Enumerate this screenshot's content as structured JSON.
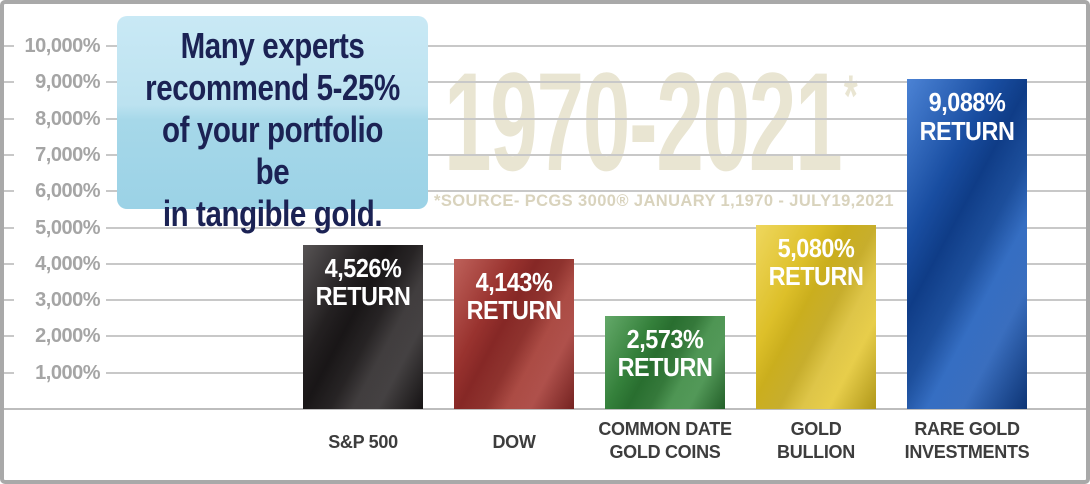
{
  "callout": {
    "text": "Many experts\nrecommend 5-25%\nof your portfolio be\nin tangible gold.",
    "bg_top": "#c9e9f5",
    "bg_bottom": "#9bd2e6",
    "text_color": "#1b2254"
  },
  "watermark": {
    "years": "1970-2021",
    "asterisk": "*",
    "source": "*SOURCE- PCGS 3000® JANUARY 1,1970 - JULY19,2021",
    "years_color": "#e9e5d2",
    "source_color": "#d9d3bd"
  },
  "colors": {
    "gridline": "#c8c8c8",
    "baseline": "#bdbdbd",
    "y_label": "#a5a5a5",
    "x_label": "#3d3d3d",
    "bar_text": "#ffffff",
    "frame_border": "#a9a9a9",
    "background": "#ffffff"
  },
  "chart_data": {
    "type": "bar",
    "title": "1970-2021*",
    "subtitle": "*SOURCE- PCGS 3000® JANUARY 1,1970 - JULY19,2021",
    "categories": [
      "S&P 500",
      "DOW",
      "COMMON DATE GOLD COINS",
      "GOLD BULLION",
      "RARE GOLD INVESTMENTS"
    ],
    "category_lines": [
      [
        "S&P 500"
      ],
      [
        "DOW"
      ],
      [
        "COMMON DATE",
        "GOLD COINS"
      ],
      [
        "GOLD",
        "BULLION"
      ],
      [
        "RARE GOLD",
        "INVESTMENTS"
      ]
    ],
    "values": [
      4526,
      4143,
      2573,
      5080,
      9088
    ],
    "value_labels": [
      [
        "4,526%",
        "RETURN"
      ],
      [
        "4,143%",
        "RETURN"
      ],
      [
        "2,573%",
        "RETURN"
      ],
      [
        "5,080%",
        "RETURN"
      ],
      [
        "9,088%",
        "RETURN"
      ]
    ],
    "bar_colors": [
      [
        "#3b3738",
        "#1a1718"
      ],
      [
        "#b3473f",
        "#8e2a28"
      ],
      [
        "#4a9a50",
        "#2b7532"
      ],
      [
        "#ecd043",
        "#d7b91f"
      ],
      [
        "#2e6ecd",
        "#10408f"
      ]
    ],
    "xlabel": "",
    "ylabel": "",
    "ylim": [
      0,
      10000
    ],
    "ytick_values": [
      10000,
      9000,
      8000,
      7000,
      6000,
      5000,
      4000,
      3000,
      2000,
      1000
    ],
    "ytick_labels": [
      "10,000%",
      "9,000%",
      "8,000%",
      "7,000%",
      "6,000%",
      "5,000%",
      "4,000%",
      "3,000%",
      "2,000%",
      "1,000%"
    ],
    "grid": true,
    "legend": false,
    "annotation": "Many experts recommend 5-25% of your portfolio be in tangible gold."
  }
}
